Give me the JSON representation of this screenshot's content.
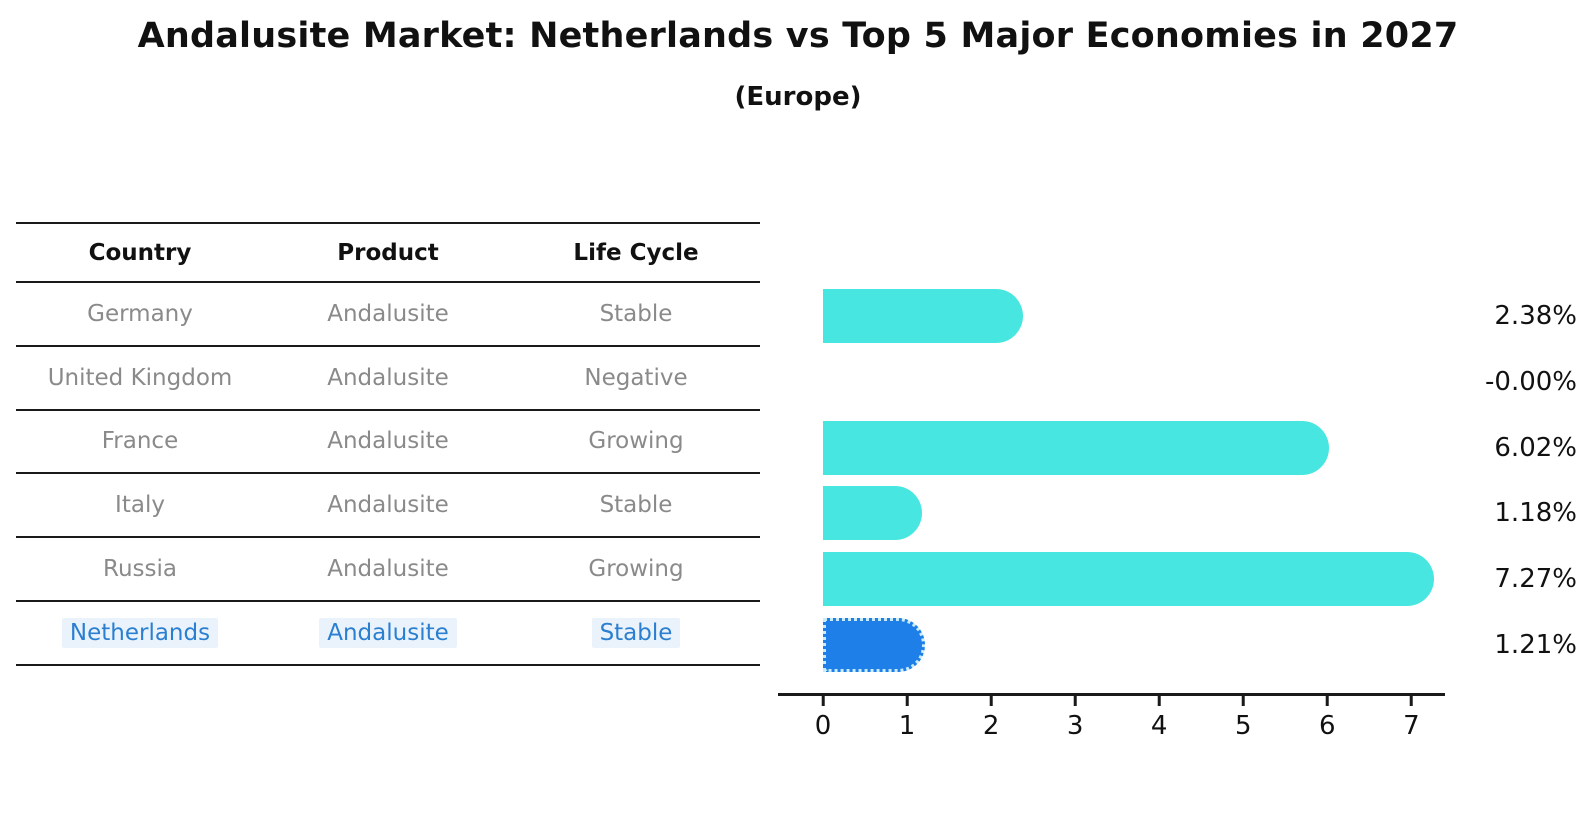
{
  "header": {
    "title": "Andalusite Market: Netherlands vs Top 5 Major Economies in 2027",
    "subtitle": "(Europe)"
  },
  "table": {
    "columns": [
      "Country",
      "Product",
      "Life Cycle"
    ],
    "rows": [
      {
        "country": "Germany",
        "product": "Andalusite",
        "life_cycle": "Stable",
        "highlight": false
      },
      {
        "country": "United Kingdom",
        "product": "Andalusite",
        "life_cycle": "Negative",
        "highlight": false
      },
      {
        "country": "France",
        "product": "Andalusite",
        "life_cycle": "Growing",
        "highlight": false
      },
      {
        "country": "Italy",
        "product": "Andalusite",
        "life_cycle": "Stable",
        "highlight": false
      },
      {
        "country": "Russia",
        "product": "Andalusite",
        "life_cycle": "Growing",
        "highlight": false
      },
      {
        "country": "Netherlands",
        "product": "Andalusite",
        "life_cycle": "Stable",
        "highlight": true
      }
    ]
  },
  "chart_data": {
    "type": "bar",
    "orientation": "horizontal",
    "title": "Andalusite Market: Netherlands vs Top 5 Major Economies in 2027 (Europe)",
    "categories": [
      "Germany",
      "United Kingdom",
      "France",
      "Italy",
      "Russia",
      "Netherlands"
    ],
    "values": [
      2.38,
      -0.0,
      6.02,
      1.18,
      7.27,
      1.21
    ],
    "value_labels": [
      "2.38%",
      "-0.00%",
      "6.02%",
      "1.18%",
      "7.27%",
      "1.21%"
    ],
    "unit": "percent",
    "xticks": [
      0,
      1,
      2,
      3,
      4,
      5,
      6,
      7
    ],
    "xlim": [
      0,
      7.4
    ],
    "grid": false,
    "legend": "none",
    "xlabel": "",
    "ylabel": "",
    "bar_color": "#47E6E0",
    "highlight_bar_color": "#1E7FE8",
    "highlight_index": 5,
    "highlight_text_color": "#2b7fd0"
  }
}
